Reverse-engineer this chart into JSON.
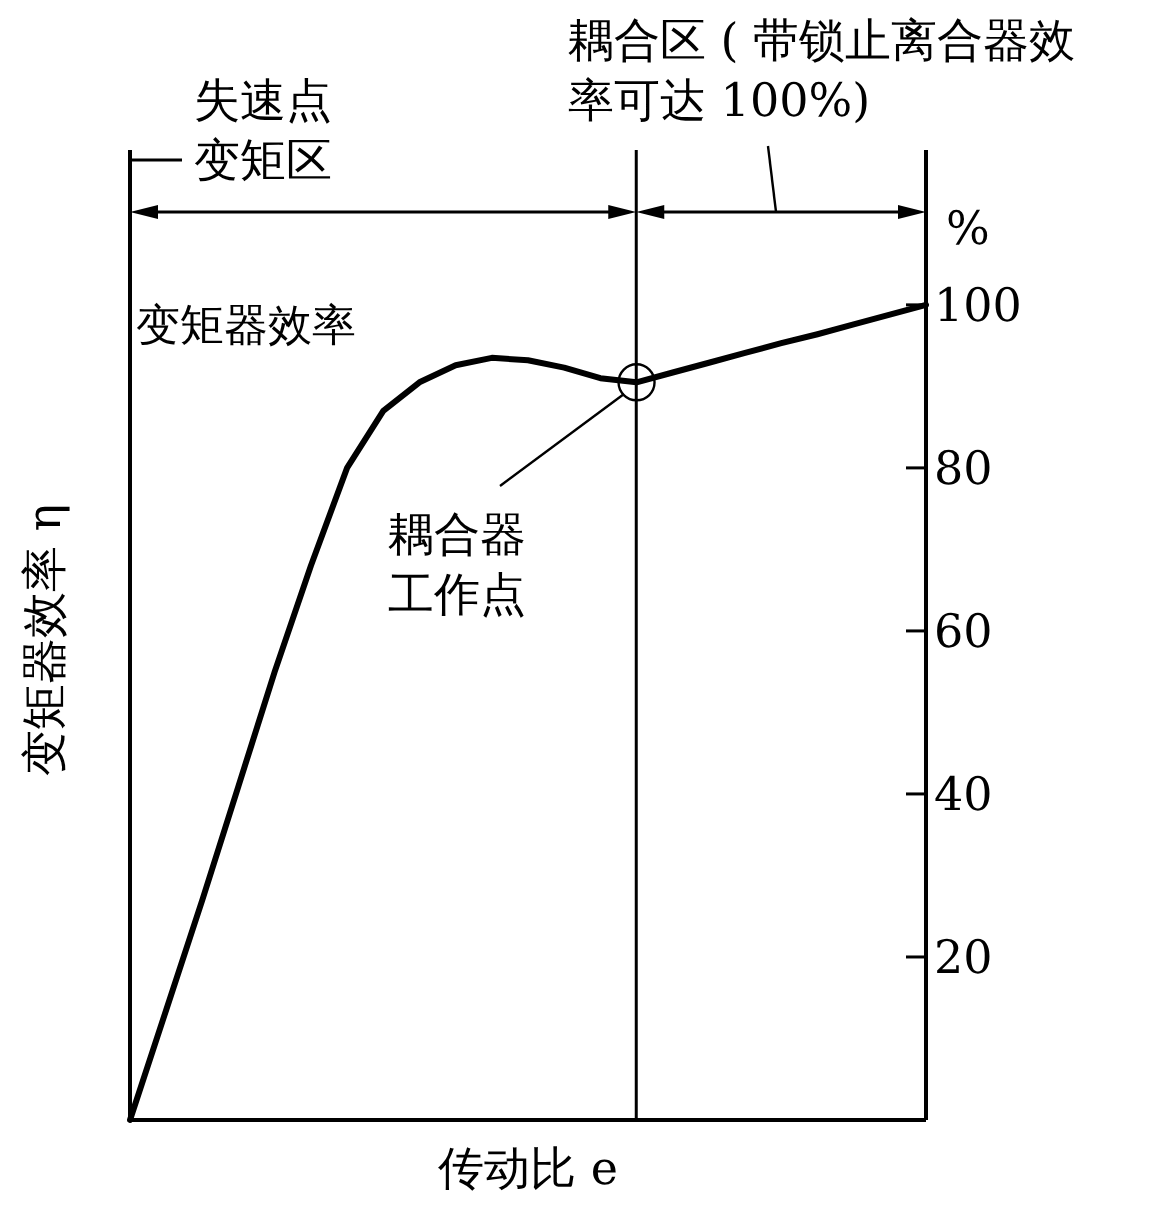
{
  "chart_data": {
    "type": "line",
    "categories": [
      null,
      null,
      null,
      null,
      null,
      null,
      null,
      null,
      null,
      null,
      null,
      null,
      null,
      null,
      null,
      null,
      null,
      null,
      null,
      null,
      null,
      null,
      null
    ],
    "series": [
      {
        "color": "#000000",
        "values": [
          0,
          13.5,
          27,
          41,
          55,
          68,
          80,
          87,
          90.5,
          92.6,
          93.5,
          93.2,
          92.3,
          91,
          90.5,
          91.7,
          92.9,
          94.1,
          95.3,
          96.4,
          97.6,
          98.8,
          100
        ]
      },
      {
        "type": "scatter",
        "marker": "circle",
        "color": "#000000",
        "values": [
          null,
          null,
          null,
          null,
          null,
          null,
          null,
          null,
          null,
          null,
          null,
          null,
          null,
          null,
          90.5,
          null,
          null,
          null,
          null,
          null,
          null,
          null,
          null
        ]
      }
    ],
    "xlabel": "传动比 e",
    "ylim": [
      0,
      119
    ],
    "yticks": [
      20,
      40,
      60,
      80,
      100
    ],
    "tick_labels": "y",
    "grid": false,
    "marker": "none",
    "line_style": "solid",
    "annotations": [
      "失速点",
      "变矩区",
      "耦合区 ( 带锁止离合器效率可达 100%)",
      "耦合器工作点",
      "%",
      "变矩器效率 η",
      "变矩器效率"
    ]
  }
}
